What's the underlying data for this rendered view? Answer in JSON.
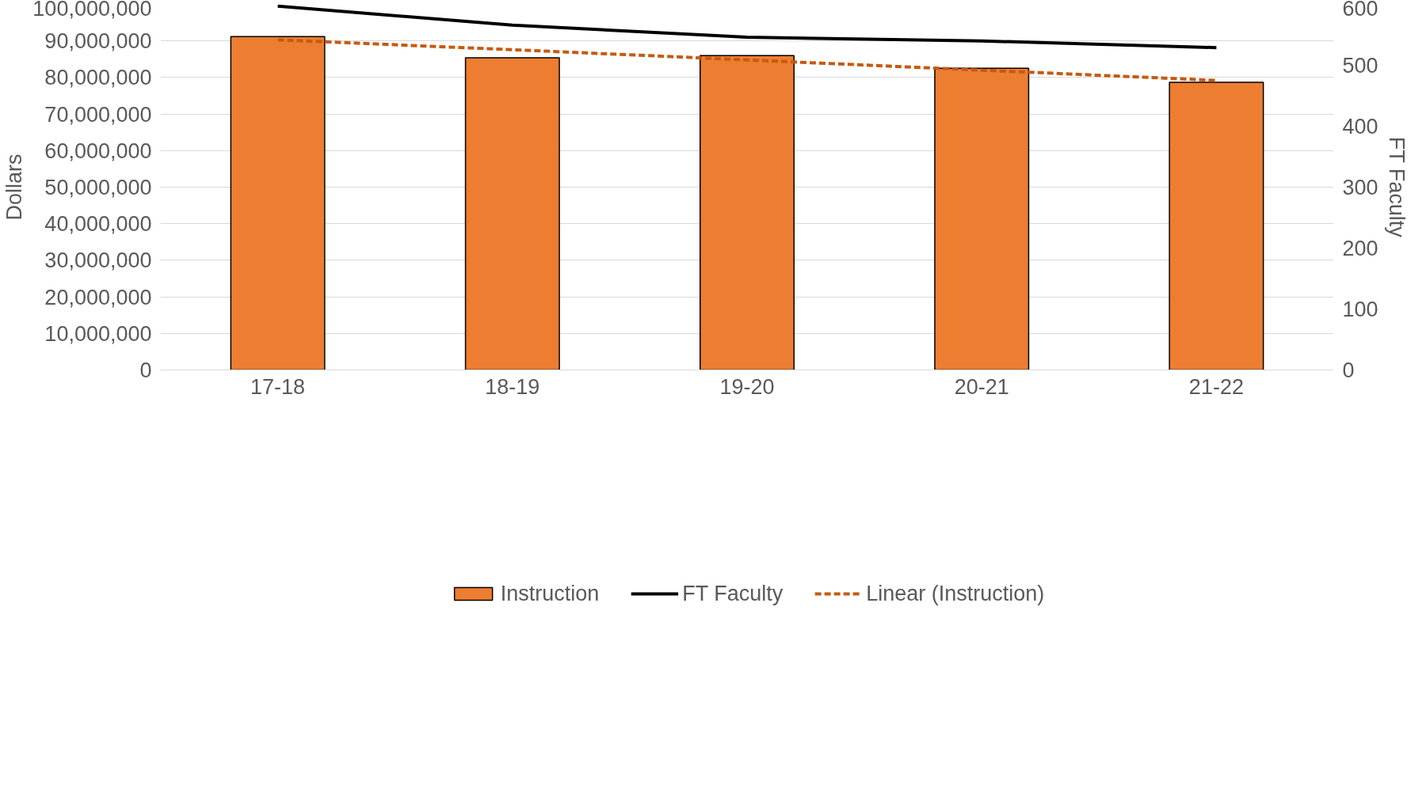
{
  "chart_data": {
    "type": "bar",
    "categories": [
      "17-18",
      "18-19",
      "19-20",
      "20-21",
      "21-22"
    ],
    "ylabel": "Dollars",
    "y2label": "FT Faculty",
    "series": [
      {
        "name": "Instruction",
        "color": "#ed7d31",
        "values": [
          91200000,
          85400000,
          86000000,
          82500000,
          78700000
        ]
      },
      {
        "name": "FT Faculty",
        "type": "line",
        "axis": "y2",
        "color": "#000000",
        "values": [
          597,
          566,
          546,
          540,
          529
        ]
      },
      {
        "name": "Linear (Instruction)",
        "type": "line",
        "line_style": "dashed",
        "color": "#c55a11",
        "values": [
          90300000,
          87600000,
          84800000,
          82000000,
          79200000
        ]
      }
    ],
    "ylim": [
      0,
      100000000
    ],
    "yticks": [
      0,
      {
        "value": 10000000,
        "label": "10,000,000"
      },
      {
        "value": 20000000,
        "label": "20,000,000"
      },
      {
        "value": 30000000,
        "label": "30,000,000"
      },
      {
        "value": 40000000,
        "label": "40,000,000"
      },
      {
        "value": 50000000,
        "label": "50,000,000"
      },
      {
        "value": 60000000,
        "label": "60,000,000"
      },
      {
        "value": 70000000,
        "label": "70,000,000"
      },
      {
        "value": 80000000,
        "label": "80,000,000"
      },
      {
        "value": 90000000,
        "label": "90,000,000"
      },
      {
        "value": 100000000,
        "label": "100,000,000"
      }
    ],
    "y2lim": [
      0,
      600
    ],
    "y2ticks": [
      0,
      100,
      200,
      300,
      400,
      500,
      600
    ],
    "grid": "y",
    "legend": "bottom"
  }
}
